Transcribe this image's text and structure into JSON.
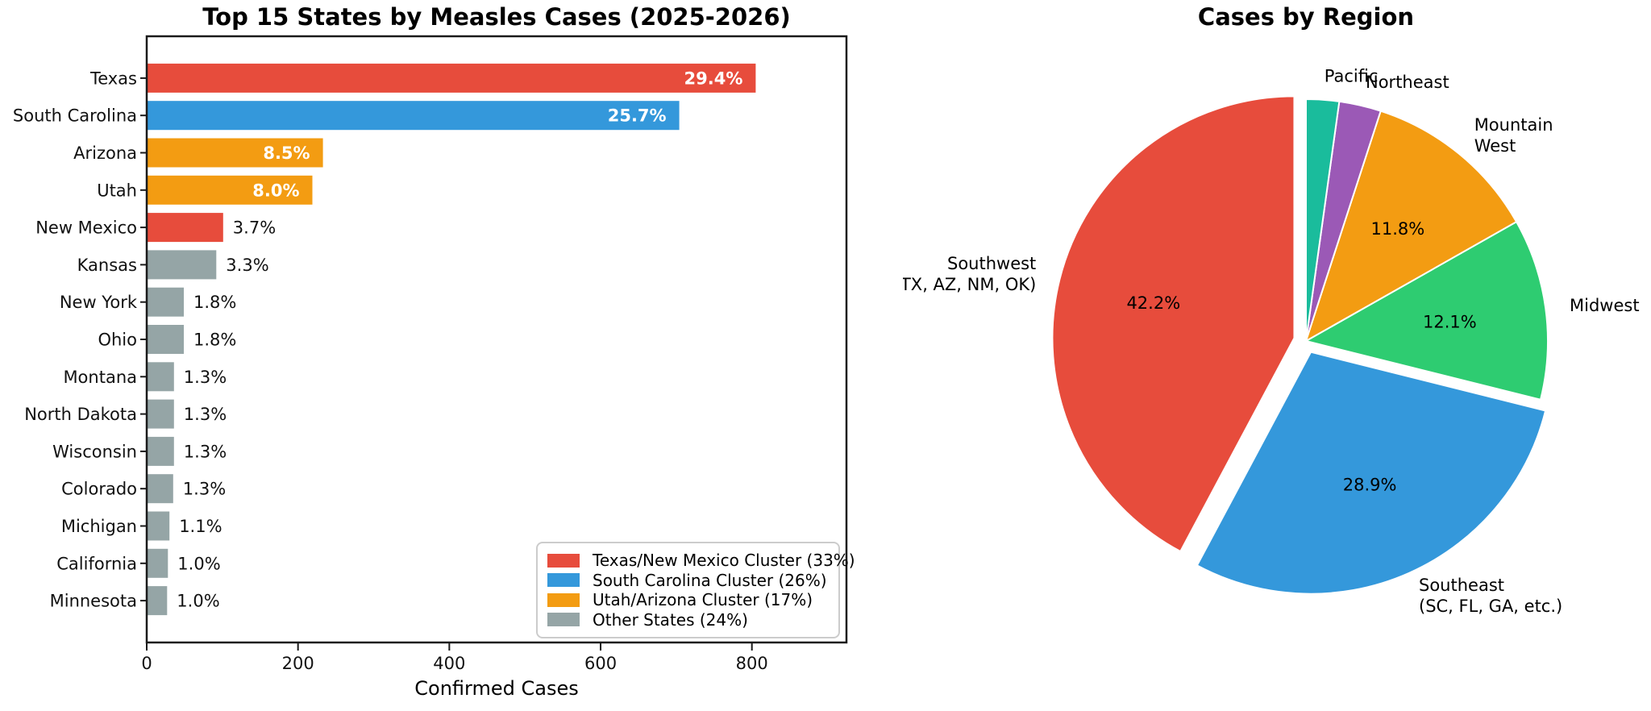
{
  "figure": {
    "background": "#ffffff",
    "text_color": "#000000",
    "spine_color": "#1a1a1a"
  },
  "chart_data": [
    {
      "type": "bar",
      "orientation": "horizontal",
      "title": "Top 15 States by Measles Cases (2025-2026)",
      "xlabel": "Confirmed Cases",
      "ylabel": "",
      "xlim": [
        0,
        925
      ],
      "xticks": [
        "0",
        "200",
        "400",
        "600",
        "800"
      ],
      "xtick_values": [
        0,
        200,
        400,
        600,
        800
      ],
      "grid": false,
      "categories": [
        "Texas",
        "South Carolina",
        "Arizona",
        "Utah",
        "New Mexico",
        "Kansas",
        "New York",
        "Ohio",
        "Montana",
        "North Dakota",
        "Wisconsin",
        "Colorado",
        "Michigan",
        "California",
        "Minnesota"
      ],
      "values": [
        805,
        704,
        233,
        219,
        101,
        92,
        49,
        49,
        36,
        36,
        36,
        35,
        30,
        28,
        27
      ],
      "pct_labels": [
        "29.4%",
        "25.7%",
        "8.5%",
        "8.0%",
        "3.7%",
        "3.3%",
        "1.8%",
        "1.8%",
        "1.3%",
        "1.3%",
        "1.3%",
        "1.3%",
        "1.1%",
        "1.0%",
        "1.0%"
      ],
      "label_inside": [
        true,
        true,
        true,
        true,
        false,
        false,
        false,
        false,
        false,
        false,
        false,
        false,
        false,
        false,
        false
      ],
      "bar_colors": [
        "#e74c3c",
        "#3498db",
        "#f39c12",
        "#f39c12",
        "#e74c3c",
        "#95a5a6",
        "#95a5a6",
        "#95a5a6",
        "#95a5a6",
        "#95a5a6",
        "#95a5a6",
        "#95a5a6",
        "#95a5a6",
        "#95a5a6",
        "#95a5a6"
      ],
      "legend": {
        "position": "lower right",
        "items": [
          {
            "label": "Texas/New Mexico Cluster (33%)",
            "color": "#e74c3c"
          },
          {
            "label": "South Carolina Cluster (26%)",
            "color": "#3498db"
          },
          {
            "label": "Utah/Arizona Cluster (17%)",
            "color": "#f39c12"
          },
          {
            "label": "Other States (24%)",
            "color": "#95a5a6"
          }
        ]
      }
    },
    {
      "type": "pie",
      "title": "Cases by Region",
      "start_angle": 90,
      "counterclockwise": true,
      "slices": [
        {
          "label_lines": [
            "Southwest",
            "(TX, AZ, NM, OK)"
          ],
          "pct": 42.2,
          "pct_label": "42.2%",
          "color": "#e74c3c",
          "explode": 0.05
        },
        {
          "label_lines": [
            "Southeast",
            "(SC, FL, GA, etc.)"
          ],
          "pct": 28.9,
          "pct_label": "28.9%",
          "color": "#3498db",
          "explode": 0.05
        },
        {
          "label_lines": [
            "Midwest"
          ],
          "pct": 12.1,
          "pct_label": "12.1%",
          "color": "#2ecc71",
          "explode": 0
        },
        {
          "label_lines": [
            "Mountain",
            "West"
          ],
          "pct": 11.8,
          "pct_label": "11.8%",
          "color": "#f39c12",
          "explode": 0
        },
        {
          "label_lines": [
            "Northeast"
          ],
          "pct": 2.8,
          "pct_label": "",
          "color": "#9b59b6",
          "explode": 0
        },
        {
          "label_lines": [
            "Pacific"
          ],
          "pct": 2.2,
          "pct_label": "",
          "color": "#1abc9c",
          "explode": 0
        }
      ]
    }
  ]
}
